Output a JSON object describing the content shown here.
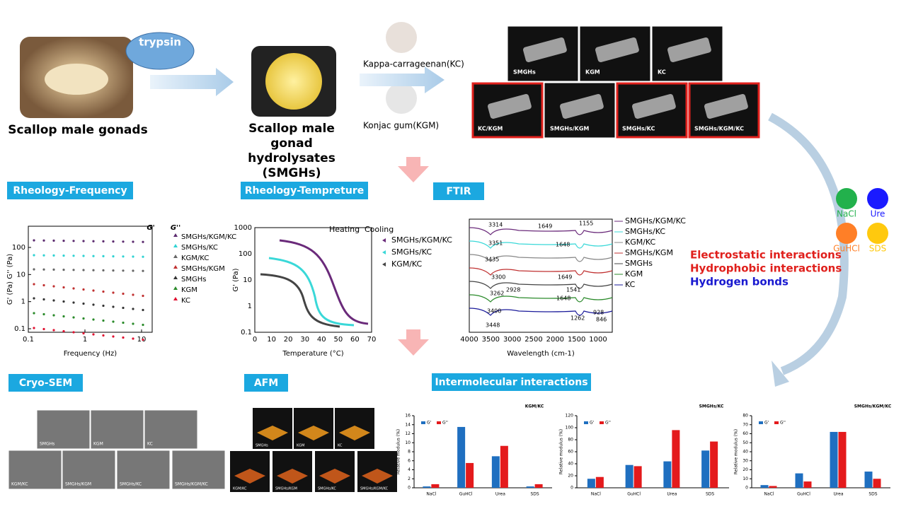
{
  "flow": {
    "enzyme": "trypsin",
    "source": "Scallop male gonads",
    "product": [
      "Scallop male",
      "gonad",
      "hydrolysates",
      "(SMGHs)"
    ],
    "kc": "Kappa-carrageenan(KC)",
    "kgm": "Konjac gum(KGM)"
  },
  "vials": [
    "SMGHs",
    "KGM",
    "KC",
    "KC/KGM",
    "SMGHs/KGM",
    "SMGHs/KC",
    "SMGHs/KGM/KC"
  ],
  "sections": [
    "Rheology-Frequency",
    "Rheology-Tempreture",
    "FTIR",
    "Cryo-SEM",
    "AFM",
    "Intermolecular interactions"
  ],
  "reagents": [
    "NaCl",
    "Ure",
    "GuHCl",
    "SDS"
  ],
  "interactions": [
    "Electrostatic interactions",
    "Hydrophobic interactions",
    "Hydrogen bonds"
  ],
  "rheo_freq": {
    "xlabel": "Frequency (Hz)",
    "ylabel": "G' (Pa) G'' (Pa)",
    "xticks": [
      0.1,
      1,
      10
    ],
    "yticks": [
      0.1,
      1,
      10,
      100
    ],
    "g1": "G'",
    "g2": "G''",
    "legend": [
      "SMGHs/KGM/KC",
      "SMGHs/KC",
      "KGM/KC",
      "SMGHs/KGM",
      "SMGHs",
      "KGM",
      "KC"
    ]
  },
  "rheo_temp": {
    "xlabel": "Temperature (°C)",
    "ylabel": "G' (Pa)",
    "xticks": [
      0,
      10,
      20,
      30,
      40,
      50,
      60,
      70
    ],
    "yticks": [
      0.1,
      1,
      10,
      100,
      1000
    ],
    "heating": "Heating",
    "cooling": "Cooling",
    "legend": [
      "SMGHs/KGM/KC",
      "SMGHs/KC",
      "KGM/KC"
    ]
  },
  "ftir": {
    "xlabel": "Wavelength (cm-1)",
    "xticks": [
      4000,
      3500,
      3000,
      2500,
      2000,
      1500,
      1000
    ],
    "legend": [
      "SMGHs/KGM/KC",
      "SMGHs/KC",
      "KGM/KC",
      "SMGHs/KGM",
      "SMGHs",
      "KGM",
      "KC"
    ],
    "peaks": [
      "3314",
      "1649",
      "1155",
      "3351",
      "1648",
      "3435",
      "3300",
      "1649",
      "3262",
      "2928",
      "1648",
      "1541",
      "3400",
      "3448",
      "1262",
      "928",
      "846"
    ]
  },
  "sem": [
    "SMGHs",
    "KGM",
    "KC",
    "KGM/KC",
    "SMGHs/KGM",
    "SMGHs/KC",
    "SMGHs/KGM/KC"
  ],
  "afm": [
    "SMGHs",
    "KGM",
    "KC",
    "KGM/KC",
    "SMGHs/KGM",
    "SMGHs/KC",
    "SMGHs/KGM/KC"
  ],
  "bars": [
    {
      "title": "KGM/KC",
      "ylabel": "Relative modulus (%)",
      "categories": [
        "NaCl",
        "GuHCl",
        "Urea",
        "SDS"
      ],
      "ylim": [
        0,
        16
      ],
      "yticks": [
        0,
        2,
        4,
        6,
        8,
        10,
        12,
        14,
        16
      ],
      "series": [
        {
          "name": "G'",
          "color": "#1f6fc0",
          "values": [
            0.3,
            13.5,
            7,
            0.3
          ]
        },
        {
          "name": "G''",
          "color": "#e41a1c",
          "values": [
            0.8,
            5.5,
            9.3,
            0.8
          ]
        }
      ]
    },
    {
      "title": "SMGHs/KC",
      "ylabel": "Relative modulus (%)",
      "categories": [
        "NaCl",
        "GuHCl",
        "Urea",
        "SDS"
      ],
      "ylim": [
        0,
        120
      ],
      "yticks": [
        0,
        20,
        40,
        60,
        80,
        100,
        120
      ],
      "series": [
        {
          "name": "G'",
          "color": "#1f6fc0",
          "values": [
            15,
            38,
            44,
            62
          ]
        },
        {
          "name": "G''",
          "color": "#e41a1c",
          "values": [
            18,
            36,
            96,
            77
          ]
        }
      ]
    },
    {
      "title": "SMGHs/KGM/KC",
      "ylabel": "Relative modulus (%)",
      "categories": [
        "NaCl",
        "GuHCl",
        "Urea",
        "SDS"
      ],
      "ylim": [
        0,
        80
      ],
      "yticks": [
        0,
        10,
        20,
        30,
        40,
        50,
        60,
        70,
        80
      ],
      "series": [
        {
          "name": "G'",
          "color": "#1f6fc0",
          "values": [
            3,
            16,
            62,
            18
          ]
        },
        {
          "name": "G''",
          "color": "#e41a1c",
          "values": [
            2,
            7,
            62,
            10
          ]
        }
      ]
    }
  ]
}
